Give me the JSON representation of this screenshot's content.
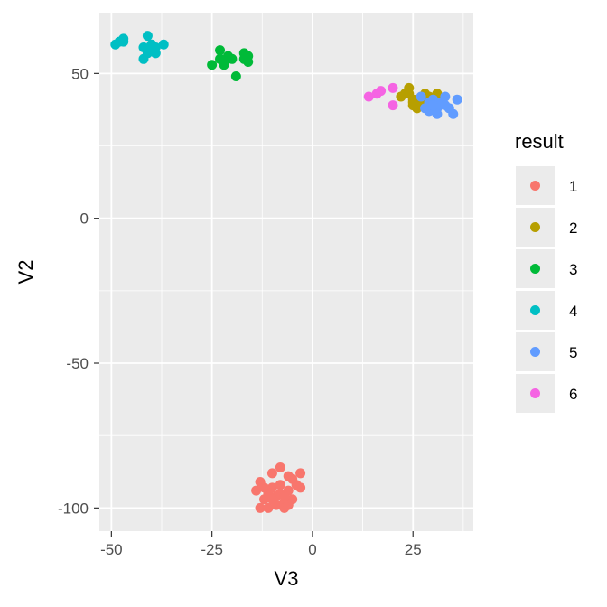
{
  "chart_data": {
    "type": "scatter",
    "xlabel": "V3",
    "ylabel": "V2",
    "xlim": [
      -53,
      40
    ],
    "ylim": [
      -108,
      71
    ],
    "x_ticks": [
      -50,
      -25,
      0,
      25
    ],
    "x_tick_labels": [
      "-50",
      "-25",
      "0",
      "25"
    ],
    "y_ticks": [
      -100,
      -50,
      0,
      50
    ],
    "y_tick_labels": [
      "-100",
      "-50",
      "0",
      "50"
    ],
    "grid": true,
    "background": "#ebebeb",
    "legend": {
      "title": "result",
      "position": "right",
      "entries": [
        "1",
        "2",
        "3",
        "4",
        "5",
        "6"
      ]
    },
    "series": [
      {
        "name": "1",
        "color": "#F8766D",
        "points": [
          [
            -14,
            -94
          ],
          [
            -13,
            -91
          ],
          [
            -12,
            -97
          ],
          [
            -13,
            -100
          ],
          [
            -11,
            -100
          ],
          [
            -11,
            -95
          ],
          [
            -10,
            -88
          ],
          [
            -10,
            -93
          ],
          [
            -9,
            -96
          ],
          [
            -9,
            -99
          ],
          [
            -8,
            -86
          ],
          [
            -8,
            -92
          ],
          [
            -8,
            -95
          ],
          [
            -7,
            -98
          ],
          [
            -7,
            -100
          ],
          [
            -6,
            -89
          ],
          [
            -6,
            -94
          ],
          [
            -6,
            -99
          ],
          [
            -5,
            -90
          ],
          [
            -5,
            -97
          ],
          [
            -4,
            -92
          ],
          [
            -3,
            -88
          ],
          [
            -3,
            -93
          ],
          [
            -10,
            -97
          ],
          [
            -12,
            -93
          ],
          [
            -7,
            -96
          ]
        ]
      },
      {
        "name": "2",
        "color": "#B79F00",
        "points": [
          [
            22,
            42
          ],
          [
            23,
            43
          ],
          [
            24,
            45
          ],
          [
            24,
            43
          ],
          [
            25,
            41
          ],
          [
            25,
            39
          ],
          [
            26,
            38
          ],
          [
            26,
            41
          ],
          [
            27,
            40
          ],
          [
            28,
            43
          ],
          [
            28,
            41
          ],
          [
            29,
            42
          ],
          [
            30,
            41
          ],
          [
            31,
            43
          ],
          [
            27,
            39
          ],
          [
            25,
            40
          ]
        ]
      },
      {
        "name": "3",
        "color": "#00BA38",
        "points": [
          [
            -25,
            53
          ],
          [
            -23,
            55
          ],
          [
            -23,
            58
          ],
          [
            -22,
            54
          ],
          [
            -21,
            56
          ],
          [
            -20,
            55
          ],
          [
            -19,
            49
          ],
          [
            -17,
            57
          ],
          [
            -17,
            55
          ],
          [
            -16,
            56
          ],
          [
            -16,
            54
          ],
          [
            -22,
            53
          ]
        ]
      },
      {
        "name": "4",
        "color": "#00BFC4",
        "points": [
          [
            -49,
            60
          ],
          [
            -48,
            61
          ],
          [
            -47,
            62
          ],
          [
            -47,
            61
          ],
          [
            -42,
            59
          ],
          [
            -42,
            55
          ],
          [
            -41,
            57
          ],
          [
            -41,
            63
          ],
          [
            -40,
            60
          ],
          [
            -39,
            57
          ],
          [
            -39,
            59
          ],
          [
            -37,
            60
          ],
          [
            -40,
            58
          ]
        ]
      },
      {
        "name": "5",
        "color": "#619CFF",
        "points": [
          [
            27,
            42
          ],
          [
            28,
            38
          ],
          [
            29,
            37
          ],
          [
            29,
            40
          ],
          [
            30,
            41
          ],
          [
            31,
            38
          ],
          [
            31,
            36
          ],
          [
            32,
            40
          ],
          [
            33,
            42
          ],
          [
            34,
            38
          ],
          [
            35,
            36
          ],
          [
            36,
            41
          ],
          [
            33,
            39
          ],
          [
            30,
            39
          ]
        ]
      },
      {
        "name": "6",
        "color": "#F564E3",
        "points": [
          [
            14,
            42
          ],
          [
            16,
            43
          ],
          [
            17,
            44
          ],
          [
            20,
            39
          ],
          [
            20,
            45
          ]
        ]
      }
    ]
  }
}
